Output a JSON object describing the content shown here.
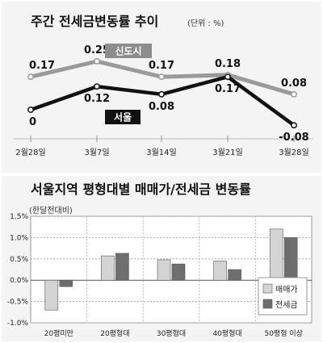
{
  "chart_data": [
    {
      "type": "line",
      "title": "주간 전세금변동률 추이",
      "unit": "(단위 : %)",
      "x": [
        "2월28일",
        "3월7일",
        "3월14일",
        "3월21일",
        "3월28일"
      ],
      "series": [
        {
          "name": "신도시",
          "values": [
            0.17,
            0.25,
            0.17,
            0.18,
            0.08
          ],
          "labels": [
            "0.17",
            "0.25",
            "0.17",
            "0.18",
            "0.08"
          ],
          "color": "#9a9a9a"
        },
        {
          "name": "서울",
          "values": [
            0,
            0.12,
            0.08,
            0.17,
            -0.08
          ],
          "labels": [
            "0",
            "0.12",
            "0.08",
            "0.17",
            "-0.08"
          ],
          "color": "#111111"
        }
      ],
      "ylim": [
        -0.1,
        0.3
      ],
      "grid": false
    },
    {
      "type": "bar",
      "title": "서울지역 평형대별 매매가/전세금 변동률",
      "subtitle": "(한달전대비)",
      "categories": [
        "20평미만",
        "20평형대",
        "30평형대",
        "40평형대",
        "50평형 이상"
      ],
      "series": [
        {
          "name": "매매가",
          "values": [
            -0.7,
            0.57,
            0.48,
            0.45,
            1.2
          ],
          "color": "#d4d4d4"
        },
        {
          "name": "전세금",
          "values": [
            -0.15,
            0.63,
            0.38,
            0.25,
            1.0
          ],
          "color": "#6e6e6e"
        }
      ],
      "yticks": [
        "1.5%",
        "1.0%",
        "0.5%",
        "0.0%",
        "-0.5%",
        "-1.0%"
      ],
      "ylim": [
        -1.0,
        1.5
      ],
      "grid": true,
      "legend": "bottom-right"
    }
  ]
}
